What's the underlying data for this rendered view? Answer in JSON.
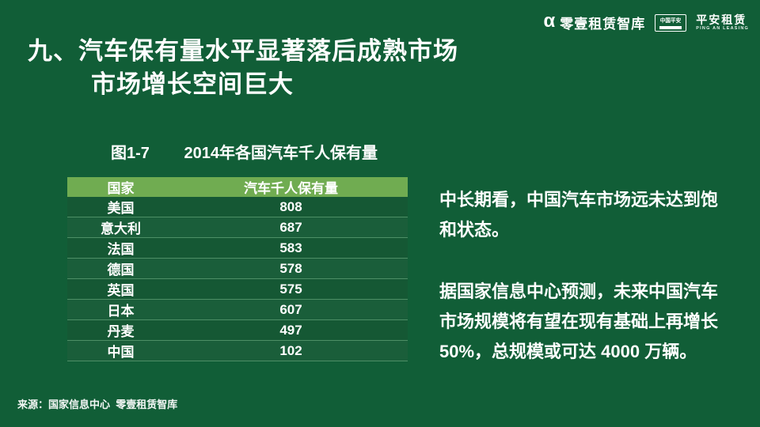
{
  "slide": {
    "title_line1": "九、汽车保有量水平显著落后成熟市场",
    "title_line2": "市场增长空间巨大",
    "caption_label": "图1-7",
    "caption_title": "2014年各国汽车千人保有量",
    "source": "来源：国家信息中心  零壹租赁智库",
    "colors": {
      "background": "#115e37",
      "table_header_bg": "#70ac51",
      "table_row_bg": "#155834",
      "table_row_alt_bg": "#1a5e3a",
      "row_divider": "#4d8f66",
      "text": "#ffffff"
    }
  },
  "brand": {
    "logo1_icon": "alpha-icon",
    "logo1_glyph": "α",
    "logo1_text": "零壹租赁智库",
    "badge_text": "中国平安",
    "logo2_text": "平安租赁",
    "logo2_subtext": "PING AN LEASING"
  },
  "table": {
    "columns": [
      "国家",
      "汽车千人保有量"
    ],
    "rows": [
      {
        "country": "美国",
        "value": "808"
      },
      {
        "country": "意大利",
        "value": "687"
      },
      {
        "country": "法国",
        "value": "583"
      },
      {
        "country": "德国",
        "value": "578"
      },
      {
        "country": "英国",
        "value": "575"
      },
      {
        "country": "日本",
        "value": "607"
      },
      {
        "country": "丹麦",
        "value": "497"
      },
      {
        "country": "中国",
        "value": "102"
      }
    ]
  },
  "commentary": {
    "para1": "中长期看，中国汽车市场远未达到饱和状态。",
    "para2": "据国家信息中心预测，未来中国汽车市场规模将有望在现有基础上再增长50%，总规模或可达 4000 万辆。"
  },
  "chart_data": {
    "type": "table",
    "title": "图1-7 2014年各国汽车千人保有量",
    "columns": [
      "国家",
      "汽车千人保有量"
    ],
    "categories": [
      "美国",
      "意大利",
      "法国",
      "德国",
      "英国",
      "日本",
      "丹麦",
      "中国"
    ],
    "values": [
      808,
      687,
      583,
      578,
      575,
      607,
      497,
      102
    ]
  }
}
